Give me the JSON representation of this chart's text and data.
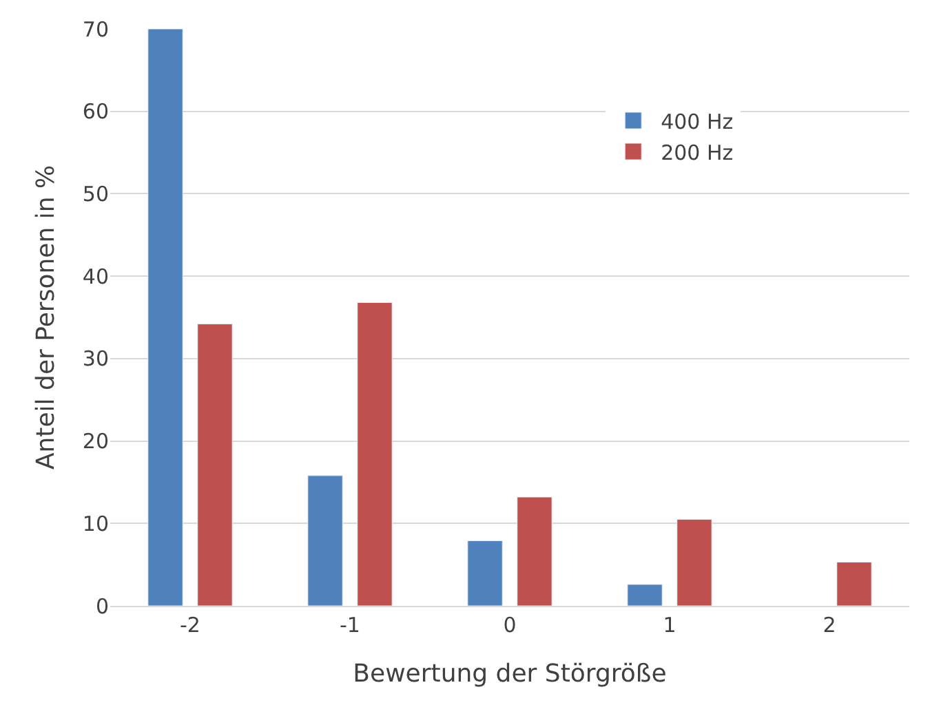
{
  "chart_data": {
    "type": "bar",
    "xlabel": "Bewertung der Störgröße",
    "ylabel": "Anteil der Personen in %",
    "categories": [
      "-2",
      "-1",
      "0",
      "1",
      "2"
    ],
    "series": [
      {
        "name": "400 Hz",
        "color": "#4f81bd",
        "values": [
          70,
          15.8,
          7.9,
          2.6,
          null
        ]
      },
      {
        "name": "200 Hz",
        "color": "#c0504d",
        "values": [
          34.2,
          36.8,
          13.2,
          10.5,
          5.3
        ]
      }
    ],
    "ylim": [
      0,
      70
    ],
    "yticks": [
      0,
      10,
      20,
      30,
      40,
      50,
      60,
      70
    ],
    "grid": "y",
    "legend": "top right"
  }
}
